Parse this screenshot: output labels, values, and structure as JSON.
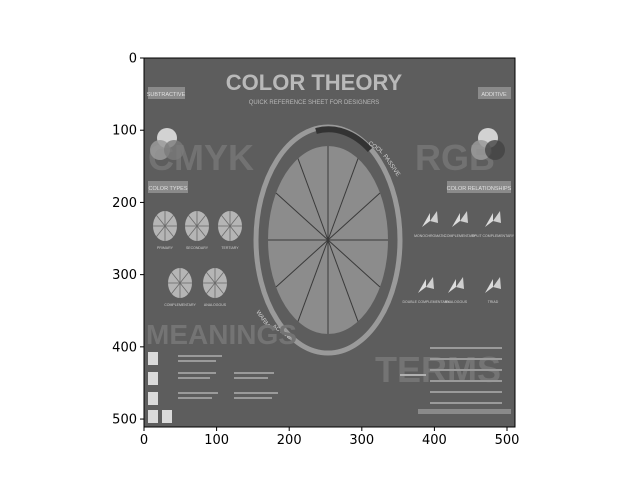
{
  "chart_data": {
    "type": "image",
    "xlim": [
      0,
      511
    ],
    "ylim": [
      511,
      0
    ],
    "x_ticks": [
      0,
      100,
      200,
      300,
      400,
      500
    ],
    "y_ticks": [
      0,
      100,
      200,
      300,
      400,
      500
    ],
    "colormap": "gray",
    "image_text": {
      "title": "COLOR THEORY",
      "subtitle": "QUICK REFERENCE SHEET FOR DESIGNERS",
      "subtractive": "SUBTRACTIVE",
      "additive": "ADDITIVE",
      "cmyk": "CMYK",
      "rgb": "RGB",
      "color_types": "COLOR TYPES",
      "color_relationships": "COLOR RELATIONSHIPS",
      "meanings": "MEANINGS",
      "terms": "TERMS",
      "wheel_cool": "COOL",
      "wheel_passive": "PASSIVE",
      "wheel_warm": "WARM",
      "wheel_active": "ACTIVE",
      "type_labels": [
        "PRIMARY",
        "SECONDARY",
        "TERTIARY",
        "COMPLEMENTARY",
        "ANALOGOUS"
      ],
      "relationship_labels": [
        "MONOCHROMATIC",
        "COMPLEMENTARY",
        "SPLIT COMPLEMENTARY",
        "DOUBLE COMPLEMENTARY",
        "ANALOGOUS",
        "TRIAD"
      ]
    }
  },
  "colors": {
    "background": "#5d5d5d",
    "panel": "#6a6a6a",
    "light": "#cfcfcf",
    "dark": "#3c3c3c",
    "big_text": "#7a7a7a"
  }
}
